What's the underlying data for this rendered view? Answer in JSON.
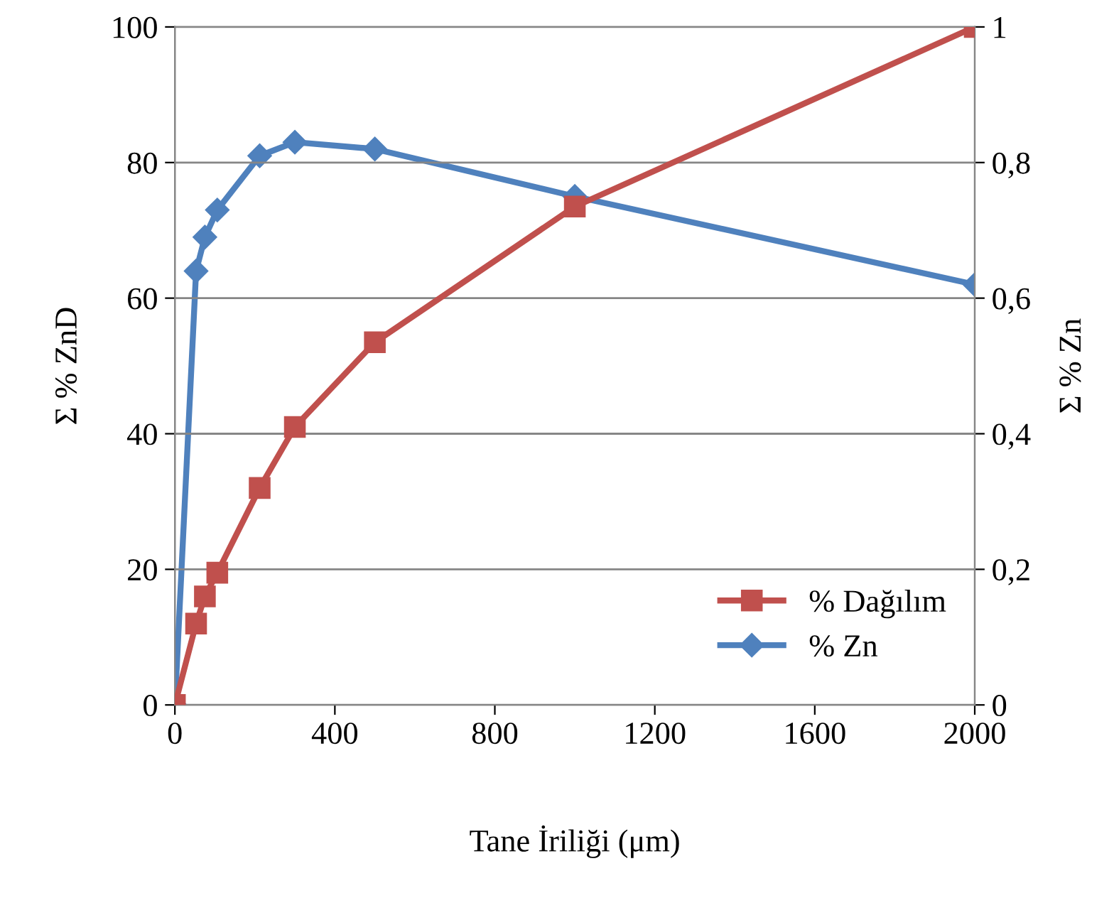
{
  "chart_data": {
    "type": "line",
    "xlabel": "Tane İriliği (μm)",
    "ylabel": "Σ % ZnD",
    "y2label": "Σ % Zn",
    "xlim": [
      0,
      2000
    ],
    "xticks": [
      0,
      400,
      800,
      1200,
      1600,
      2000
    ],
    "ylim": [
      0,
      100
    ],
    "yticks": [
      0,
      20,
      40,
      60,
      80,
      100
    ],
    "y2lim": [
      0,
      1
    ],
    "y2ticks": [
      0,
      {
        "value": 0.2,
        "label": "0,2"
      },
      {
        "value": 0.4,
        "label": "0,4"
      },
      {
        "value": 0.6,
        "label": "0,6"
      },
      {
        "value": 0.8,
        "label": "0,8"
      },
      1
    ],
    "grid": "y",
    "legend": "bottom right",
    "series": [
      {
        "name": "% Dağılım",
        "color": "#c0504d",
        "marker": "square",
        "x": [
          0,
          53,
          75,
          106,
          212,
          300,
          500,
          1000,
          2000
        ],
        "values": [
          0,
          12,
          16,
          19.5,
          32,
          41,
          53.5,
          73.5,
          100
        ]
      },
      {
        "name": "% Zn",
        "color": "#4f81bd",
        "marker": "diamond",
        "axis": "y2",
        "x": [
          0,
          53,
          75,
          106,
          212,
          300,
          500,
          1000,
          2000
        ],
        "values": [
          0,
          0.64,
          0.69,
          0.73,
          0.81,
          0.83,
          0.82,
          0.75,
          0.62
        ]
      }
    ]
  }
}
